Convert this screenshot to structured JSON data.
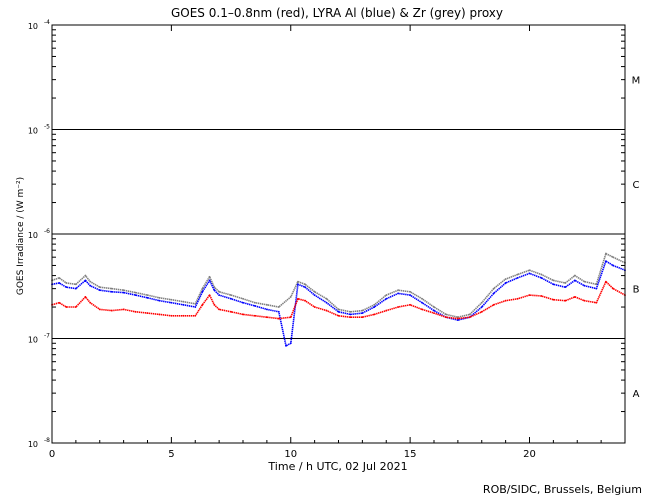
{
  "chart_data": {
    "type": "line",
    "title": "GOES 0.1–0.8nm (red), LYRA Al (blue) & Zr (grey) proxy",
    "xlabel": "Time / h UTC, 02 Jul 2021",
    "ylabel": "GOES Irradiance / (W m⁻²)",
    "xlim": [
      0,
      24
    ],
    "ylim": [
      1e-08,
      0.0001
    ],
    "yscale": "log",
    "x_ticks": [
      0,
      5,
      10,
      15,
      20
    ],
    "x_tick_labels": [
      "0",
      "5",
      "10",
      "15",
      "20"
    ],
    "y_ticks": [
      1e-08,
      1e-07,
      1e-06,
      1e-05,
      0.0001
    ],
    "y_tick_labels": [
      {
        "base": "10",
        "exp": "-8"
      },
      {
        "base": "10",
        "exp": "-7"
      },
      {
        "base": "10",
        "exp": "-6"
      },
      {
        "base": "10",
        "exp": "-5"
      },
      {
        "base": "10",
        "exp": "-4"
      }
    ],
    "flare_class_lines": [
      1e-07,
      1e-06,
      1e-05
    ],
    "flare_classes": [
      {
        "label": "A",
        "y": 3e-08
      },
      {
        "label": "B",
        "y": 3e-07
      },
      {
        "label": "C",
        "y": 3e-06
      },
      {
        "label": "M",
        "y": 3e-05
      }
    ],
    "series": [
      {
        "name": "GOES 0.1–0.8nm",
        "color": "#ff0000",
        "x": [
          0,
          0.3,
          0.6,
          1.0,
          1.4,
          1.6,
          2.0,
          2.5,
          3.0,
          3.5,
          4.0,
          4.5,
          5.0,
          5.5,
          6.0,
          6.3,
          6.6,
          6.8,
          7.0,
          7.5,
          8.0,
          8.5,
          9.0,
          9.5,
          10.0,
          10.3,
          10.6,
          11.0,
          11.5,
          12.0,
          12.5,
          13.0,
          13.5,
          14.0,
          14.5,
          15.0,
          15.5,
          16.0,
          16.5,
          17.0,
          17.5,
          18.0,
          18.5,
          19.0,
          19.5,
          20.0,
          20.5,
          21.0,
          21.5,
          21.9,
          22.3,
          22.8,
          23.2,
          23.5,
          24.0
        ],
        "y": [
          2.1e-07,
          2.2e-07,
          2e-07,
          2e-07,
          2.5e-07,
          2.2e-07,
          1.9e-07,
          1.85e-07,
          1.9e-07,
          1.8e-07,
          1.75e-07,
          1.7e-07,
          1.65e-07,
          1.65e-07,
          1.65e-07,
          2.1e-07,
          2.6e-07,
          2.1e-07,
          1.9e-07,
          1.8e-07,
          1.7e-07,
          1.65e-07,
          1.6e-07,
          1.55e-07,
          1.6e-07,
          2.4e-07,
          2.3e-07,
          2e-07,
          1.85e-07,
          1.65e-07,
          1.6e-07,
          1.6e-07,
          1.7e-07,
          1.85e-07,
          2e-07,
          2.1e-07,
          1.9e-07,
          1.75e-07,
          1.6e-07,
          1.55e-07,
          1.6e-07,
          1.8e-07,
          2.1e-07,
          2.3e-07,
          2.4e-07,
          2.6e-07,
          2.55e-07,
          2.35e-07,
          2.3e-07,
          2.5e-07,
          2.3e-07,
          2.2e-07,
          3.5e-07,
          3e-07,
          2.6e-07
        ]
      },
      {
        "name": "LYRA Al proxy",
        "color": "#0000ff",
        "x": [
          0,
          0.3,
          0.6,
          1.0,
          1.4,
          1.6,
          2.0,
          2.5,
          3.0,
          3.5,
          4.0,
          4.5,
          5.0,
          5.5,
          6.0,
          6.3,
          6.6,
          6.8,
          7.0,
          7.5,
          8.0,
          8.5,
          9.0,
          9.5,
          9.8,
          10.0,
          10.3,
          10.6,
          11.0,
          11.5,
          12.0,
          12.5,
          13.0,
          13.5,
          14.0,
          14.5,
          15.0,
          15.5,
          16.0,
          16.5,
          17.0,
          17.5,
          18.0,
          18.5,
          19.0,
          19.5,
          20.0,
          20.5,
          21.0,
          21.5,
          21.9,
          22.3,
          22.8,
          23.2,
          23.5,
          24.0
        ],
        "y": [
          3.3e-07,
          3.4e-07,
          3.1e-07,
          3e-07,
          3.6e-07,
          3.2e-07,
          2.9e-07,
          2.8e-07,
          2.75e-07,
          2.6e-07,
          2.45e-07,
          2.3e-07,
          2.2e-07,
          2.1e-07,
          2e-07,
          2.8e-07,
          3.6e-07,
          2.9e-07,
          2.6e-07,
          2.4e-07,
          2.2e-07,
          2.05e-07,
          1.9e-07,
          1.8e-07,
          8.5e-08,
          9e-08,
          3.3e-07,
          3.1e-07,
          2.6e-07,
          2.2e-07,
          1.8e-07,
          1.7e-07,
          1.75e-07,
          2e-07,
          2.4e-07,
          2.7e-07,
          2.6e-07,
          2.2e-07,
          1.85e-07,
          1.6e-07,
          1.5e-07,
          1.6e-07,
          2e-07,
          2.7e-07,
          3.4e-07,
          3.8e-07,
          4.2e-07,
          3.8e-07,
          3.3e-07,
          3.1e-07,
          3.6e-07,
          3.2e-07,
          3e-07,
          5.5e-07,
          5e-07,
          4.5e-07
        ]
      },
      {
        "name": "LYRA Zr proxy",
        "color": "#808080",
        "x": [
          0,
          0.3,
          0.6,
          1.0,
          1.4,
          1.6,
          2.0,
          2.5,
          3.0,
          3.5,
          4.0,
          4.5,
          5.0,
          5.5,
          6.0,
          6.3,
          6.6,
          6.8,
          7.0,
          7.5,
          8.0,
          8.5,
          9.0,
          9.5,
          10.0,
          10.3,
          10.6,
          11.0,
          11.5,
          12.0,
          12.5,
          13.0,
          13.5,
          14.0,
          14.5,
          15.0,
          15.5,
          16.0,
          16.5,
          17.0,
          17.5,
          18.0,
          18.5,
          19.0,
          19.5,
          20.0,
          20.5,
          21.0,
          21.5,
          21.9,
          22.3,
          22.8,
          23.2,
          23.5,
          24.0
        ],
        "y": [
          3.6e-07,
          3.8e-07,
          3.4e-07,
          3.3e-07,
          4e-07,
          3.5e-07,
          3.1e-07,
          3e-07,
          2.9e-07,
          2.75e-07,
          2.6e-07,
          2.45e-07,
          2.35e-07,
          2.25e-07,
          2.15e-07,
          3e-07,
          3.9e-07,
          3.1e-07,
          2.8e-07,
          2.6e-07,
          2.4e-07,
          2.2e-07,
          2.1e-07,
          2e-07,
          2.5e-07,
          3.5e-07,
          3.3e-07,
          2.8e-07,
          2.4e-07,
          1.9e-07,
          1.8e-07,
          1.85e-07,
          2.1e-07,
          2.6e-07,
          2.9e-07,
          2.8e-07,
          2.4e-07,
          2e-07,
          1.7e-07,
          1.6e-07,
          1.7e-07,
          2.2e-07,
          3e-07,
          3.7e-07,
          4.1e-07,
          4.5e-07,
          4.1e-07,
          3.6e-07,
          3.4e-07,
          4e-07,
          3.5e-07,
          3.3e-07,
          6.5e-07,
          6e-07,
          5.3e-07
        ]
      }
    ],
    "credit": "ROB/SIDC, Brussels, Belgium"
  }
}
